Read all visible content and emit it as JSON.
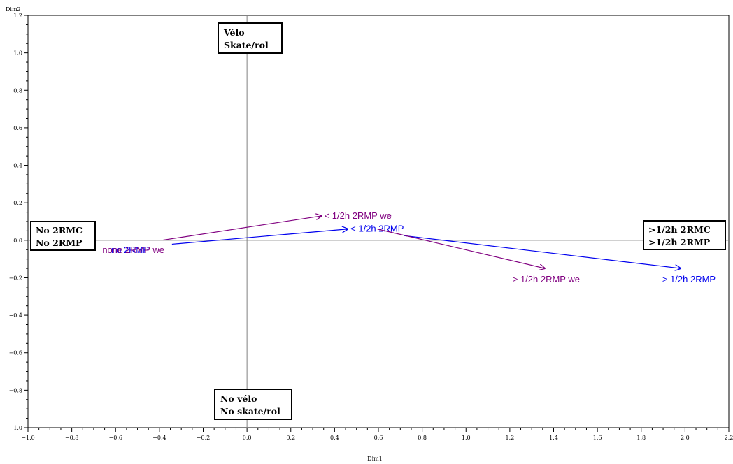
{
  "chart_data": {
    "type": "line",
    "xlabel": "Dim1",
    "ylabel": "Dim2",
    "xlim": [
      -1.0,
      2.2
    ],
    "ylim": [
      -1.0,
      1.2
    ],
    "x_ticks": [
      -1.0,
      -0.8,
      -0.6,
      -0.4,
      -0.2,
      0.0,
      0.2,
      0.4,
      0.6,
      0.8,
      1.0,
      1.2,
      1.4,
      1.6,
      1.8,
      2.0,
      2.2
    ],
    "y_ticks": [
      -1.0,
      -0.8,
      -0.6,
      -0.4,
      -0.2,
      0.0,
      0.2,
      0.4,
      0.6,
      0.8,
      1.0,
      1.2
    ],
    "reference_lines": {
      "x": 0.0,
      "y": 0.0
    },
    "grid": false,
    "series": [
      {
        "color": "#0000ee",
        "points": [
          {
            "x": -0.63,
            "y": -0.05,
            "label": "no 2RMP"
          },
          {
            "x": 0.46,
            "y": 0.06,
            "label": "< 1/2h 2RMP"
          },
          {
            "x": 1.98,
            "y": -0.15,
            "label": "> 1/2h 2RMP"
          }
        ]
      },
      {
        "color": "#800080",
        "points": [
          {
            "x": -0.67,
            "y": -0.05,
            "label": "none 2RMP we"
          },
          {
            "x": 0.34,
            "y": 0.13,
            "label": "< 1/2h 2RMP we"
          },
          {
            "x": 1.36,
            "y": -0.15,
            "label": "> 1/2h 2RMP we"
          }
        ]
      }
    ],
    "annotations": [
      {
        "lines": [
          "Vélo",
          "Skate/rol"
        ],
        "position": "top-center"
      },
      {
        "lines": [
          "No vélo",
          "No skate/rol"
        ],
        "position": "bottom-center"
      },
      {
        "lines": [
          "No 2RMC",
          "No 2RMP"
        ],
        "position": "middle-left"
      },
      {
        "lines": [
          ">1/2h 2RMC",
          ">1/2h 2RMP"
        ],
        "position": "middle-right"
      }
    ]
  }
}
